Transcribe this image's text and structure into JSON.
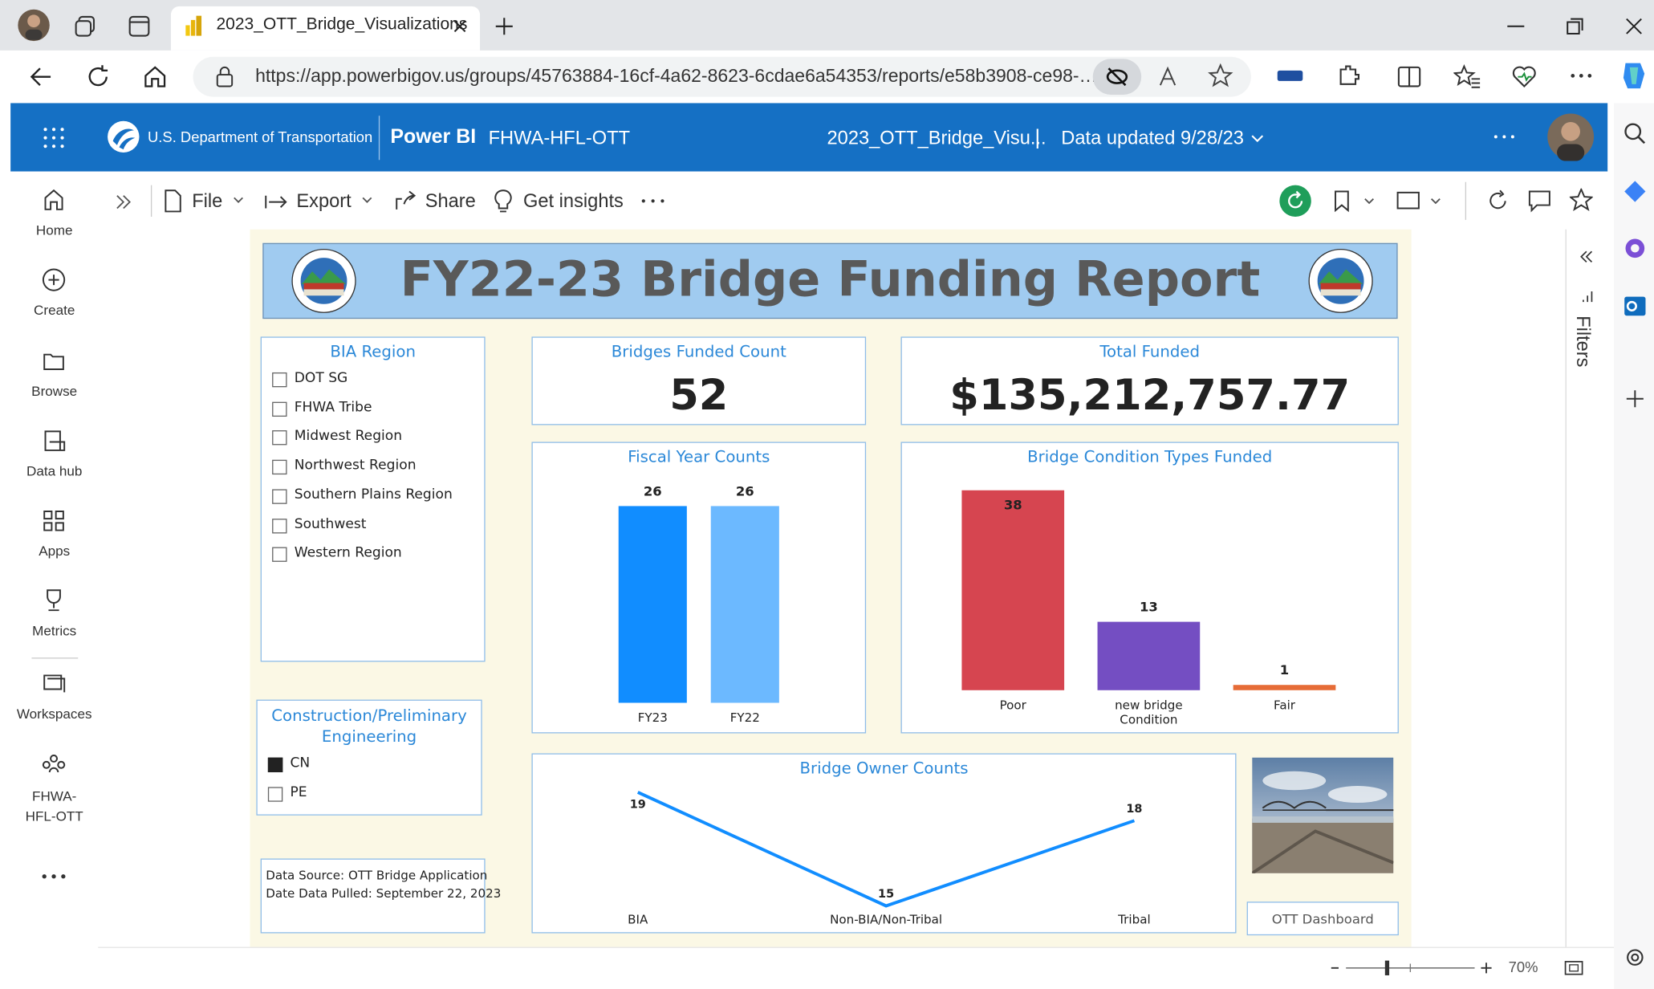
{
  "browser": {
    "tab_title": "2023_OTT_Bridge_Visualizations",
    "url": "https://app.powerbigov.us/groups/45763884-16cf-4a62-8623-6cdae6a54353/reports/e58b3908-ce98-…"
  },
  "header": {
    "org": "U.S. Department of Transportation",
    "product": "Power BI",
    "workspace": "FHWA-HFL-OTT",
    "report": "2023_OTT_Bridge_Visu...",
    "separator": "|",
    "updated": "Data updated 9/28/23"
  },
  "nav": [
    "Home",
    "Create",
    "Browse",
    "Data hub",
    "Apps",
    "Metrics",
    "Workspaces",
    "FHWA-HFL-OTT"
  ],
  "toolbar": [
    "File",
    "Export",
    "Share",
    "Get insights"
  ],
  "filters_pane": "Filters",
  "report": {
    "title": "FY22-23 Bridge Funding Report",
    "bia_slicer": {
      "title": "BIA Region",
      "items": [
        {
          "label": "DOT SG",
          "checked": false
        },
        {
          "label": "FHWA Tribe",
          "checked": false
        },
        {
          "label": "Midwest Region",
          "checked": false
        },
        {
          "label": "Northwest Region",
          "checked": false
        },
        {
          "label": "Southern Plains Region",
          "checked": false
        },
        {
          "label": "Southwest",
          "checked": false
        },
        {
          "label": "Western Region",
          "checked": false
        }
      ]
    },
    "work_slicer": {
      "title": "Construction/Preliminary Engineering",
      "items": [
        {
          "label": "CN",
          "checked": true
        },
        {
          "label": "PE",
          "checked": false
        }
      ]
    },
    "count_card": {
      "title": "Bridges Funded Count",
      "value": 52
    },
    "total_card": {
      "title": "Total Funded",
      "value": "$135,212,757.77"
    },
    "source": [
      "Data Source: OTT Bridge Application",
      "Date Data Pulled: September 22, 2023"
    ],
    "button": "OTT Dashboard"
  },
  "zoom": "70%",
  "chart_data": [
    {
      "type": "bar",
      "title": "Fiscal Year Counts",
      "categories": [
        "FY23",
        "FY22"
      ],
      "values": [
        26,
        26
      ],
      "colors": [
        "#118dff",
        "#6cb9ff"
      ]
    },
    {
      "type": "bar",
      "title": "Bridge Condition Types Funded",
      "categories": [
        "Poor",
        "new bridge Condition",
        "Fair"
      ],
      "values": [
        38,
        13,
        1
      ],
      "colors": [
        "#d64550",
        "#744ec2",
        "#e66c37"
      ]
    },
    {
      "type": "line",
      "title": "Bridge Owner Counts",
      "categories": [
        "BIA",
        "Non-BIA/Non-Tribal",
        "Tribal"
      ],
      "values": [
        19,
        15,
        18
      ],
      "color": "#118dff"
    }
  ]
}
